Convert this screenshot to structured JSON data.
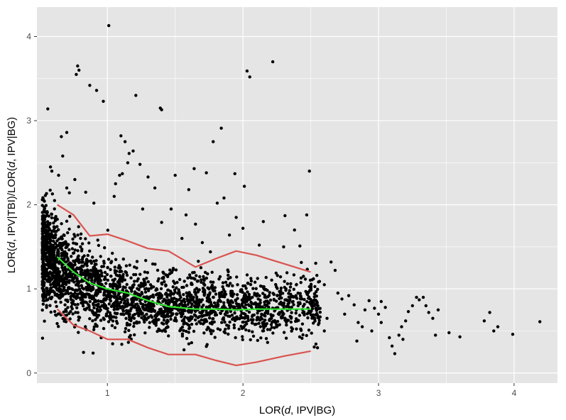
{
  "chart_data": {
    "type": "scatter",
    "xlabel": "LOR(d, IPV|BG)",
    "ylabel": "LOR(d, IPV|TBI)/LOR(d, IPV|BG)",
    "xlim": [
      0.48,
      4.32
    ],
    "ylim": [
      -0.12,
      4.35
    ],
    "x_ticks": [
      1,
      2,
      3,
      4
    ],
    "y_ticks": [
      0,
      1,
      2,
      3,
      4
    ],
    "grid": true,
    "panel_background": "#e5e5e5",
    "colors": {
      "points": "#000000",
      "median_line": "#2ee62e",
      "quantile_lines": "#d9534f",
      "grid": "#ffffff"
    },
    "lines": [
      {
        "role": "upper-quantile",
        "x": [
          0.63,
          0.75,
          0.87,
          1.0,
          1.15,
          1.3,
          1.45,
          1.65,
          1.8,
          1.95,
          2.1,
          2.3,
          2.5
        ],
        "y": [
          2.0,
          1.88,
          1.63,
          1.65,
          1.57,
          1.48,
          1.45,
          1.26,
          1.36,
          1.45,
          1.4,
          1.3,
          1.2
        ]
      },
      {
        "role": "median",
        "x": [
          0.63,
          0.75,
          0.87,
          1.0,
          1.15,
          1.3,
          1.45,
          1.65,
          1.8,
          1.95,
          2.1,
          2.3,
          2.5
        ],
        "y": [
          1.38,
          1.2,
          1.07,
          1.0,
          0.95,
          0.86,
          0.79,
          0.76,
          0.76,
          0.75,
          0.76,
          0.76,
          0.76
        ]
      },
      {
        "role": "lower-quantile",
        "x": [
          0.63,
          0.75,
          0.87,
          1.0,
          1.15,
          1.3,
          1.45,
          1.65,
          1.8,
          1.95,
          2.1,
          2.3,
          2.5
        ],
        "y": [
          0.76,
          0.57,
          0.5,
          0.4,
          0.4,
          0.3,
          0.22,
          0.22,
          0.15,
          0.09,
          0.13,
          0.2,
          0.26
        ]
      }
    ],
    "points": {
      "outliers": [
        [
          1.01,
          4.13
        ],
        [
          0.78,
          3.65
        ],
        [
          0.77,
          3.55
        ],
        [
          0.79,
          3.6
        ],
        [
          0.87,
          3.42
        ],
        [
          0.92,
          3.36
        ],
        [
          0.97,
          3.23
        ],
        [
          1.21,
          3.3
        ],
        [
          1.39,
          3.15
        ],
        [
          1.4,
          3.13
        ],
        [
          2.03,
          3.59
        ],
        [
          2.05,
          3.52
        ],
        [
          2.22,
          3.7
        ],
        [
          1.84,
          2.91
        ],
        [
          1.78,
          2.75
        ],
        [
          0.56,
          3.14
        ],
        [
          0.66,
          2.81
        ],
        [
          0.7,
          2.86
        ],
        [
          1.05,
          2.1
        ],
        [
          1.06,
          2.25
        ],
        [
          1.1,
          2.82
        ],
        [
          1.13,
          2.75
        ],
        [
          1.16,
          2.61
        ],
        [
          1.19,
          2.64
        ],
        [
          1.15,
          2.5
        ],
        [
          1.11,
          2.37
        ],
        [
          1.09,
          2.35
        ],
        [
          1.24,
          2.48
        ],
        [
          1.3,
          2.33
        ],
        [
          1.35,
          2.2
        ],
        [
          1.5,
          2.35
        ],
        [
          1.6,
          2.18
        ],
        [
          1.64,
          2.43
        ],
        [
          1.73,
          2.38
        ],
        [
          1.81,
          2.02
        ],
        [
          1.86,
          2.08
        ],
        [
          1.94,
          2.37
        ],
        [
          2.01,
          2.22
        ],
        [
          2.49,
          2.4
        ],
        [
          2.47,
          1.88
        ],
        [
          2.31,
          1.87
        ],
        [
          2.38,
          1.7
        ],
        [
          2.15,
          1.8
        ],
        [
          2.0,
          1.72
        ],
        [
          2.42,
          1.51
        ],
        [
          2.3,
          1.5
        ],
        [
          0.67,
          2.58
        ],
        [
          0.76,
          2.3
        ],
        [
          0.7,
          2.2
        ],
        [
          0.61,
          2.05
        ],
        [
          0.59,
          2.4
        ],
        [
          0.58,
          2.45
        ],
        [
          0.64,
          2.35
        ],
        [
          0.84,
          2.15
        ],
        [
          0.9,
          2.02
        ],
        [
          1.26,
          1.95
        ],
        [
          1.47,
          1.95
        ],
        [
          1.58,
          1.88
        ],
        [
          1.65,
          1.77
        ],
        [
          1.55,
          1.6
        ],
        [
          1.4,
          1.79
        ],
        [
          1.7,
          1.55
        ],
        [
          1.76,
          1.44
        ],
        [
          1.9,
          1.64
        ],
        [
          2.12,
          1.52
        ],
        [
          1.95,
          1.85
        ]
      ],
      "tail": [
        [
          2.52,
          1.12
        ],
        [
          2.6,
          1.05
        ],
        [
          2.65,
          1.32
        ],
        [
          2.68,
          1.22
        ],
        [
          2.7,
          0.95
        ],
        [
          2.73,
          0.88
        ],
        [
          2.78,
          0.92
        ],
        [
          2.82,
          0.81
        ],
        [
          2.85,
          0.6
        ],
        [
          2.88,
          0.55
        ],
        [
          2.9,
          0.75
        ],
        [
          2.93,
          0.86
        ],
        [
          2.97,
          0.77
        ],
        [
          3.0,
          0.7
        ],
        [
          3.02,
          0.85
        ],
        [
          3.05,
          0.78
        ],
        [
          3.08,
          0.42
        ],
        [
          3.1,
          0.32
        ],
        [
          3.12,
          0.23
        ],
        [
          3.15,
          0.45
        ],
        [
          3.18,
          0.4
        ],
        [
          3.2,
          0.62
        ],
        [
          3.22,
          0.73
        ],
        [
          3.25,
          0.8
        ],
        [
          3.28,
          0.9
        ],
        [
          3.3,
          0.87
        ],
        [
          3.33,
          0.9
        ],
        [
          3.35,
          0.8
        ],
        [
          3.37,
          0.72
        ],
        [
          3.4,
          0.65
        ],
        [
          3.44,
          0.75
        ],
        [
          3.42,
          0.45
        ],
        [
          3.52,
          0.48
        ],
        [
          3.6,
          0.43
        ],
        [
          3.78,
          0.62
        ],
        [
          3.82,
          0.72
        ],
        [
          3.85,
          0.5
        ],
        [
          3.88,
          0.55
        ],
        [
          3.99,
          0.46
        ],
        [
          4.19,
          0.61
        ],
        [
          2.55,
          0.3
        ],
        [
          2.6,
          0.5
        ],
        [
          2.62,
          0.65
        ],
        [
          2.75,
          0.7
        ],
        [
          2.95,
          0.5
        ],
        [
          3.02,
          0.6
        ],
        [
          3.17,
          0.55
        ],
        [
          2.84,
          0.38
        ]
      ]
    }
  }
}
